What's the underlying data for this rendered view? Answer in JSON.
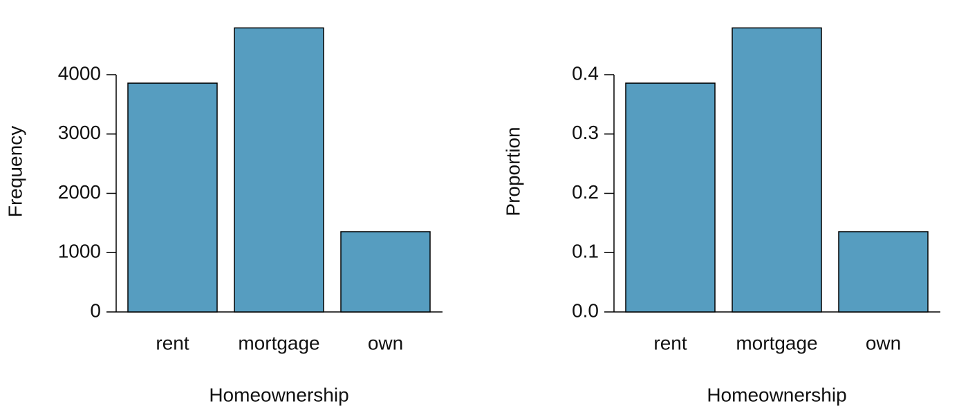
{
  "chart_data": [
    {
      "type": "bar",
      "x_label": "Homeownership",
      "y_label": "Frequency",
      "categories": [
        "rent",
        "mortgage",
        "own"
      ],
      "values": [
        3858,
        4789,
        1353
      ],
      "color": "#569dc0",
      "ylim": [
        0,
        4800
      ],
      "yticks": [
        0,
        1000,
        2000,
        3000,
        4000
      ]
    },
    {
      "type": "bar",
      "x_label": "Homeownership",
      "y_label": "Proportion",
      "categories": [
        "rent",
        "mortgage",
        "own"
      ],
      "values": [
        0.3858,
        0.4789,
        0.1353
      ],
      "color": "#569dc0",
      "ylim": [
        0,
        0.48
      ],
      "yticks": [
        {
          "value": 0,
          "label": "0.0"
        },
        0.1,
        0.2,
        0.3,
        0.4
      ]
    }
  ]
}
